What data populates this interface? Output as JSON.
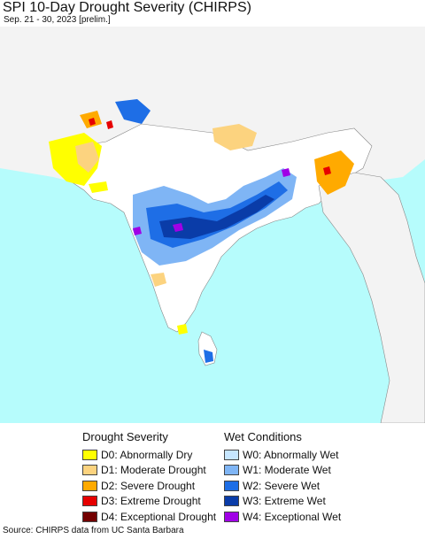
{
  "title": "SPI 10-Day Drought Severity (CHIRPS)",
  "subtitle": "Sep. 21 - 30, 2023 [prelim.]",
  "source": "Source: CHIRPS data from UC Santa Barbara",
  "map": {
    "colors": {
      "ocean": "#b6fcfc",
      "land": "#f3f3f3",
      "neutral": "#ffffff"
    }
  },
  "legend": {
    "drought": {
      "heading": "Drought Severity",
      "items": [
        {
          "label": "D0: Abnormally Dry",
          "color": "#ffff00"
        },
        {
          "label": "D1: Moderate Drought",
          "color": "#fcd37f"
        },
        {
          "label": "D2: Severe Drought",
          "color": "#ffaa00"
        },
        {
          "label": "D3: Extreme Drought",
          "color": "#e60000"
        },
        {
          "label": "D4: Exceptional Drought",
          "color": "#730000"
        }
      ]
    },
    "wet": {
      "heading": "Wet Conditions",
      "items": [
        {
          "label": "W0: Abnormally Wet",
          "color": "#c6e6ff"
        },
        {
          "label": "W1: Moderate Wet",
          "color": "#7fb5f5"
        },
        {
          "label": "W2: Severe Wet",
          "color": "#1e6ee6"
        },
        {
          "label": "W3: Extreme Wet",
          "color": "#0a3ca8"
        },
        {
          "label": "W4: Exceptional Wet",
          "color": "#a000e6"
        }
      ]
    }
  }
}
